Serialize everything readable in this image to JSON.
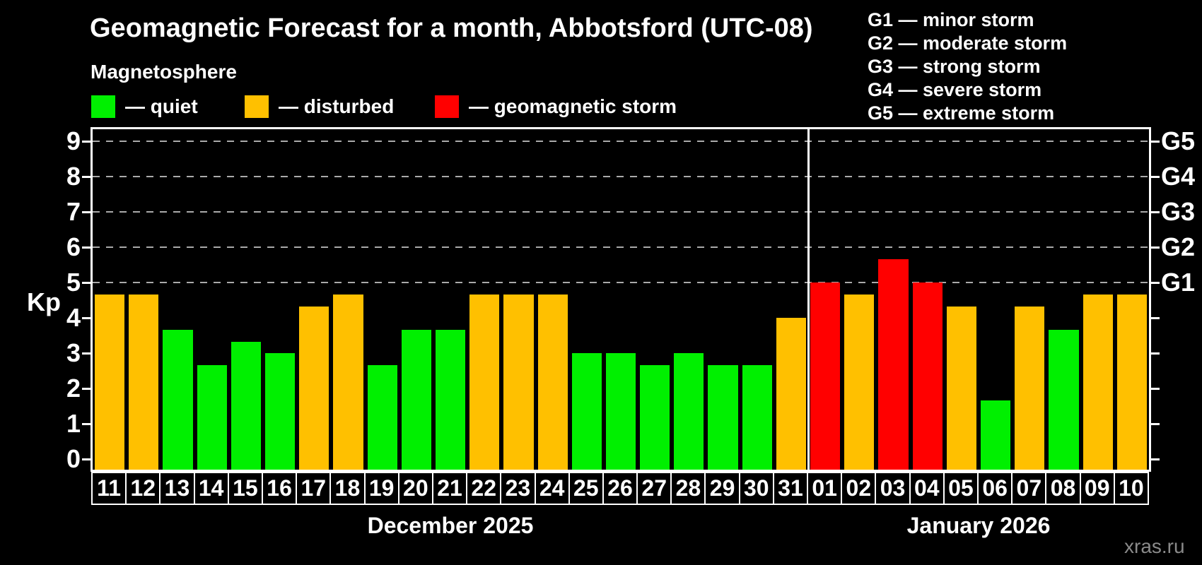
{
  "header": {
    "title": "Geomagnetic Forecast for a month, Abbotsford (UTC-08)",
    "legend_title": "Magnetosphere",
    "legend_items": [
      {
        "status": "quiet",
        "label": "— quiet"
      },
      {
        "status": "disturbed",
        "label": "— disturbed"
      },
      {
        "status": "storm",
        "label": "— geomagnetic storm"
      }
    ],
    "g_scale_legend": [
      "G1 — minor storm",
      "G2 — moderate storm",
      "G3 — strong storm",
      "G4 — severe storm",
      "G5 — extreme storm"
    ]
  },
  "colors": {
    "quiet": "#00F000",
    "disturbed": "#FFC000",
    "storm": "#FF0000",
    "background": "#000000",
    "axis": "#FFFFFF",
    "gridline": "#AAAAAA",
    "watermark": "#8A8A8A"
  },
  "chart_data": {
    "type": "bar",
    "ylabel": "Kp",
    "yticks": [
      0,
      1,
      2,
      3,
      4,
      5,
      6,
      7,
      8,
      9
    ],
    "ylim": [
      -0.3,
      9.34
    ],
    "grid": "dashed horizontal lines at Kp 5-9 only",
    "gridlines_at_kp": [
      5,
      6,
      7,
      8,
      9
    ],
    "right_axis_labels": [
      {
        "kp": 5,
        "label": "G1"
      },
      {
        "kp": 6,
        "label": "G2"
      },
      {
        "kp": 7,
        "label": "G3"
      },
      {
        "kp": 8,
        "label": "G4"
      },
      {
        "kp": 9,
        "label": "G5"
      }
    ],
    "months": [
      {
        "label": "December 2025",
        "bars": [
          {
            "day": "11",
            "kp": 4.67,
            "status": "disturbed"
          },
          {
            "day": "12",
            "kp": 4.67,
            "status": "disturbed"
          },
          {
            "day": "13",
            "kp": 3.67,
            "status": "quiet"
          },
          {
            "day": "14",
            "kp": 2.67,
            "status": "quiet"
          },
          {
            "day": "15",
            "kp": 3.33,
            "status": "quiet"
          },
          {
            "day": "16",
            "kp": 3.0,
            "status": "quiet"
          },
          {
            "day": "17",
            "kp": 4.33,
            "status": "disturbed"
          },
          {
            "day": "18",
            "kp": 4.67,
            "status": "disturbed"
          },
          {
            "day": "19",
            "kp": 2.67,
            "status": "quiet"
          },
          {
            "day": "20",
            "kp": 3.67,
            "status": "quiet"
          },
          {
            "day": "21",
            "kp": 3.67,
            "status": "quiet"
          },
          {
            "day": "22",
            "kp": 4.67,
            "status": "disturbed"
          },
          {
            "day": "23",
            "kp": 4.67,
            "status": "disturbed"
          },
          {
            "day": "24",
            "kp": 4.67,
            "status": "disturbed"
          },
          {
            "day": "25",
            "kp": 3.0,
            "status": "quiet"
          },
          {
            "day": "26",
            "kp": 3.0,
            "status": "quiet"
          },
          {
            "day": "27",
            "kp": 2.67,
            "status": "quiet"
          },
          {
            "day": "28",
            "kp": 3.0,
            "status": "quiet"
          },
          {
            "day": "29",
            "kp": 2.67,
            "status": "quiet"
          },
          {
            "day": "30",
            "kp": 2.67,
            "status": "quiet"
          },
          {
            "day": "31",
            "kp": 4.0,
            "status": "disturbed"
          }
        ]
      },
      {
        "label": "January 2026",
        "bars": [
          {
            "day": "01",
            "kp": 5.0,
            "status": "storm"
          },
          {
            "day": "02",
            "kp": 4.67,
            "status": "disturbed"
          },
          {
            "day": "03",
            "kp": 5.67,
            "status": "storm"
          },
          {
            "day": "04",
            "kp": 5.0,
            "status": "storm"
          },
          {
            "day": "05",
            "kp": 4.33,
            "status": "disturbed"
          },
          {
            "day": "06",
            "kp": 1.67,
            "status": "quiet"
          },
          {
            "day": "07",
            "kp": 4.33,
            "status": "disturbed"
          },
          {
            "day": "08",
            "kp": 3.67,
            "status": "quiet"
          },
          {
            "day": "09",
            "kp": 4.67,
            "status": "disturbed"
          },
          {
            "day": "10",
            "kp": 4.67,
            "status": "disturbed"
          }
        ]
      }
    ]
  },
  "footer": {
    "watermark": "xras.ru"
  }
}
